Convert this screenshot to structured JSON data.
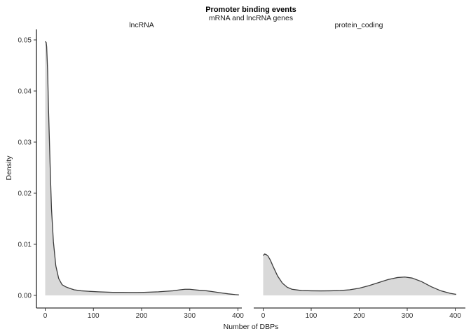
{
  "chart_data": {
    "type": "area",
    "title": "Promoter binding events",
    "subtitle": "mRNA and lncRNA genes",
    "xlabel": "Number of DBPs",
    "ylabel": "Density",
    "xlim": [
      0,
      400
    ],
    "ylim": [
      0,
      0.05
    ],
    "x_ticks": [
      0,
      100,
      200,
      300,
      400
    ],
    "y_ticks": [
      0.0,
      0.01,
      0.02,
      0.03,
      0.04,
      0.05
    ],
    "x_tick_labels": [
      "0",
      "100",
      "200",
      "300",
      "400"
    ],
    "y_tick_labels": [
      "0.00",
      "0.01",
      "0.02",
      "0.03",
      "0.04",
      "0.05"
    ],
    "grid": false,
    "facets": [
      {
        "label": "lncRNA",
        "x": [
          0,
          2,
          3,
          5,
          7,
          10,
          13,
          17,
          22,
          28,
          35,
          42,
          50,
          60,
          75,
          90,
          110,
          125,
          140,
          160,
          175,
          190,
          205,
          220,
          235,
          250,
          265,
          280,
          290,
          300,
          310,
          320,
          335,
          350,
          365,
          380,
          395,
          402
        ],
        "y": [
          0.0497,
          0.0495,
          0.0487,
          0.044,
          0.036,
          0.026,
          0.017,
          0.0105,
          0.0058,
          0.0033,
          0.0021,
          0.0017,
          0.0014,
          0.0011,
          0.0009,
          0.0008,
          0.0007,
          0.00065,
          0.0006,
          0.0006,
          0.00058,
          0.00058,
          0.0006,
          0.00065,
          0.0007,
          0.0008,
          0.0009,
          0.0011,
          0.0012,
          0.0012,
          0.0011,
          0.001,
          0.0009,
          0.0007,
          0.0005,
          0.0003,
          0.00015,
          0.0001
        ]
      },
      {
        "label": "protein_coding",
        "x": [
          0,
          3,
          6,
          10,
          15,
          20,
          30,
          40,
          50,
          60,
          80,
          100,
          120,
          140,
          160,
          180,
          200,
          220,
          240,
          260,
          280,
          295,
          310,
          330,
          350,
          370,
          390,
          402
        ],
        "y": [
          0.0078,
          0.0081,
          0.008,
          0.0077,
          0.0069,
          0.0058,
          0.0038,
          0.0024,
          0.0016,
          0.0012,
          0.00095,
          0.0009,
          0.00088,
          0.0009,
          0.00095,
          0.0011,
          0.0014,
          0.0019,
          0.0025,
          0.0031,
          0.0035,
          0.0036,
          0.0034,
          0.0027,
          0.0017,
          0.0009,
          0.0004,
          0.0002
        ]
      }
    ]
  }
}
